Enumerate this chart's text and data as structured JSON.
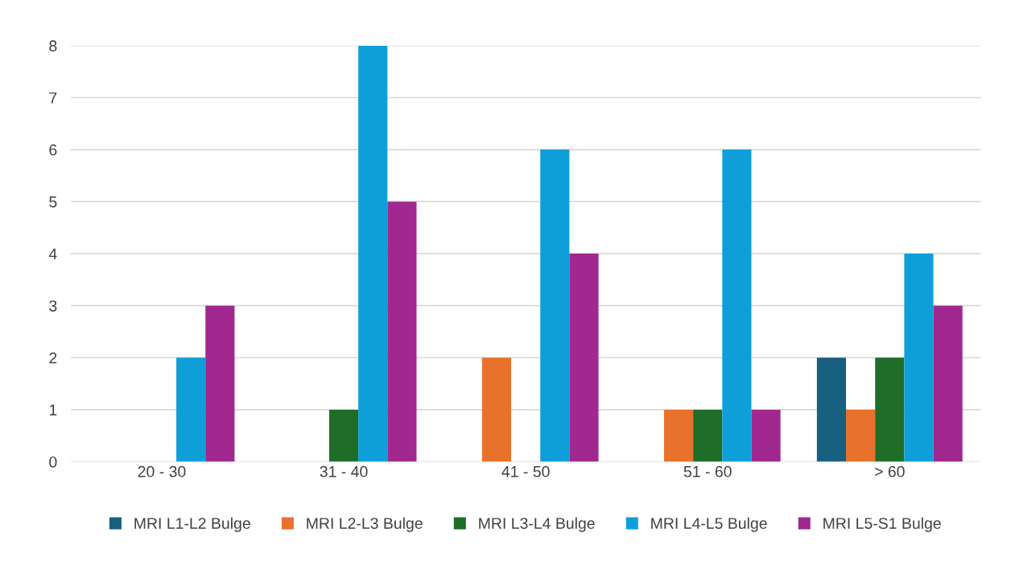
{
  "chart_data": {
    "type": "bar",
    "categories": [
      "20 - 30",
      "31 - 40",
      "41 - 50",
      "51 - 60",
      "> 60"
    ],
    "series": [
      {
        "name": "MRI L1-L2 Bulge",
        "color": "#17607f",
        "values": [
          0,
          0,
          0,
          0,
          2
        ]
      },
      {
        "name": "MRI L2-L3 Bulge",
        "color": "#e8712c",
        "values": [
          0,
          0,
          2,
          1,
          1
        ]
      },
      {
        "name": "MRI L3-L4 Bulge",
        "color": "#1e6e2a",
        "values": [
          0,
          1,
          0,
          1,
          2
        ]
      },
      {
        "name": "MRI L4-L5 Bulge",
        "color": "#0f9fd8",
        "values": [
          2,
          8,
          6,
          6,
          4
        ]
      },
      {
        "name": "MRI L5-S1 Bulge",
        "color": "#a0288f",
        "values": [
          3,
          5,
          4,
          1,
          3
        ]
      }
    ],
    "ylim": [
      0,
      8
    ],
    "yticks": [
      0,
      1,
      2,
      3,
      4,
      5,
      6,
      7,
      8
    ],
    "grid": "y",
    "legend": "bottom"
  }
}
